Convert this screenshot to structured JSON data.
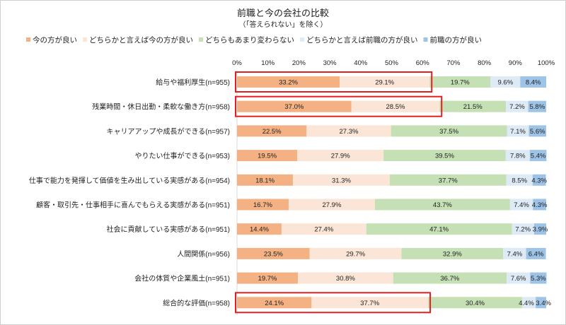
{
  "chart_data": {
    "type": "bar",
    "orientation": "horizontal",
    "stacked": "percent",
    "title": "前職と今の会社の比較",
    "subtitle": "（「答えられない」を除く）",
    "legend_position": "top",
    "xlim": [
      0,
      100
    ],
    "x_ticks": [
      "0%",
      "10%",
      "20%",
      "30%",
      "40%",
      "50%",
      "60%",
      "70%",
      "80%",
      "90%",
      "100%"
    ],
    "grid": false,
    "categories": [
      "給与や福利厚生(n=955)",
      "残業時間・休日出勤・柔軟な働き方(n=958)",
      "キャリアアップや成長ができる(n=957)",
      "やりたい仕事ができる(n=953)",
      "仕事で能力を発揮して価値を生み出している実感がある(n=954)",
      "顧客・取引先・仕事相手に喜んでもらえる実感がある(n=951)",
      "社会に貢献している実感がある(n=951)",
      "人間関係(n=956)",
      "会社の体質や企業風土(n=951)",
      "総合的な評価(n=958)"
    ],
    "series": [
      {
        "name": "今の方が良い",
        "color": "#F4B183",
        "values": [
          33.2,
          37.0,
          22.5,
          19.5,
          18.1,
          16.7,
          14.4,
          23.5,
          19.7,
          24.1
        ]
      },
      {
        "name": "どちらかと言えば今の方が良い",
        "color": "#FBE5D6",
        "values": [
          29.1,
          28.5,
          27.3,
          27.9,
          31.3,
          27.9,
          27.4,
          29.7,
          30.8,
          37.7
        ]
      },
      {
        "name": "どちらもあまり変わらない",
        "color": "#C5E0B4",
        "values": [
          19.7,
          21.5,
          37.5,
          39.5,
          37.7,
          43.7,
          47.1,
          32.9,
          36.7,
          30.4
        ]
      },
      {
        "name": "どちらかと言えば前職の方が良い",
        "color": "#DEEBF7",
        "values": [
          9.6,
          7.2,
          7.1,
          7.8,
          8.5,
          7.4,
          7.2,
          7.4,
          7.6,
          4.4
        ]
      },
      {
        "name": "前職の方が良い",
        "color": "#9DC3E6",
        "values": [
          8.4,
          5.8,
          5.6,
          5.4,
          4.3,
          4.3,
          3.9,
          6.4,
          5.3,
          3.4
        ]
      }
    ],
    "highlighted_rows": [
      0,
      1,
      9
    ],
    "highlight_color": "#E02020"
  }
}
